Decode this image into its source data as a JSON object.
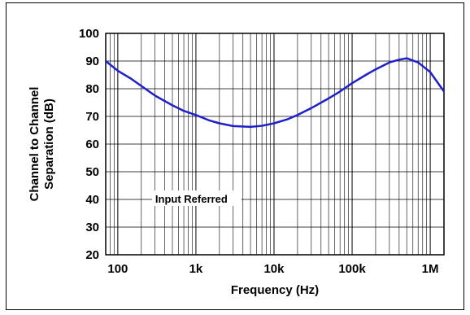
{
  "chart_data": {
    "type": "line",
    "xscale": "log",
    "xlim": [
      70,
      1500000
    ],
    "ylim": [
      20,
      100
    ],
    "grid": true,
    "xlabel": "Frequency (Hz)",
    "ylabel_lines": [
      "Channel to Channel",
      "Separation (dB)"
    ],
    "x_ticks": [
      {
        "value": 100,
        "label": "100"
      },
      {
        "value": 1000,
        "label": "1k"
      },
      {
        "value": 10000,
        "label": "10k"
      },
      {
        "value": 100000,
        "label": "100k"
      },
      {
        "value": 1000000,
        "label": "1M"
      }
    ],
    "y_ticks": [
      20,
      30,
      40,
      50,
      60,
      70,
      80,
      90,
      100
    ],
    "annotations": [
      {
        "text": "Input Referred",
        "x": 1000,
        "y": 40
      }
    ],
    "line_color": "#1f1fcc",
    "series": [
      {
        "name": "",
        "x": [
          70,
          100,
          150,
          200,
          300,
          500,
          700,
          1000,
          1500,
          2000,
          3000,
          5000,
          7000,
          10000,
          15000,
          20000,
          30000,
          50000,
          70000,
          100000,
          150000,
          200000,
          300000,
          400000,
          500000,
          700000,
          1000000,
          1500000
        ],
        "y": [
          90,
          86.5,
          83.5,
          81,
          77.5,
          74,
          72,
          70.5,
          68.5,
          67.5,
          66.5,
          66.2,
          66.6,
          67.5,
          69,
          70.5,
          73,
          76.5,
          79,
          82,
          85,
          87,
          89.5,
          90.5,
          91,
          89.5,
          86,
          79
        ]
      }
    ]
  }
}
